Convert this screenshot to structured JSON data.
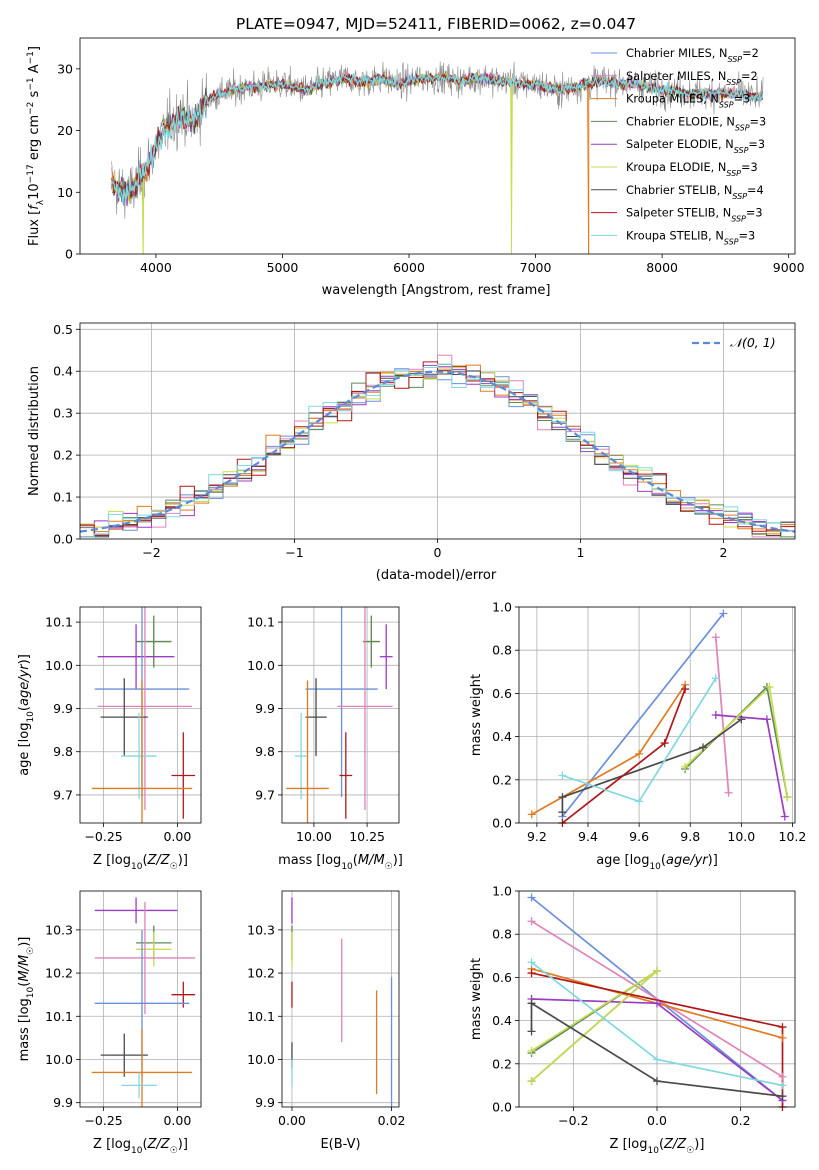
{
  "figure_title": "PLATE=0947, MJD=52411, FIBERID=0062, z=0.047",
  "colors": {
    "Chabrier MILES": "#6a8fdb",
    "Salpeter MILES": "#e083b8",
    "Kroupa MILES": "#e07b20",
    "Chabrier ELODIE": "#5c8a5c",
    "Salpeter ELODIE": "#9b3cc4",
    "Kroupa ELODIE": "#c8dc50",
    "Chabrier STELIB": "#4a4a4a",
    "Salpeter STELIB": "#b01818",
    "Kroupa STELIB": "#80d8e0"
  },
  "chart_data": [
    {
      "type": "line",
      "xlabel": "wavelength [Angstrom, rest frame]",
      "ylabel": "Flux [f_λ 10^-17 erg cm^-2 s^-1 A^-1]",
      "xlim": [
        3400,
        9050
      ],
      "ylim": [
        0,
        35
      ],
      "xticks": [
        4000,
        5000,
        6000,
        7000,
        8000,
        9000
      ],
      "yticks": [
        0,
        10,
        20,
        30
      ],
      "legend_position": "top-right",
      "legend": [
        {
          "key": "Chabrier MILES",
          "label": "Chabrier MILES, N",
          "sub": "SSP",
          "tail": "=2"
        },
        {
          "key": "Salpeter MILES",
          "label": "Salpeter MILES, N",
          "sub": "SSP",
          "tail": "=2"
        },
        {
          "key": "Kroupa MILES",
          "label": "Kroupa MILES, N",
          "sub": "SSP",
          "tail": "=3"
        },
        {
          "key": "Chabrier ELODIE",
          "label": "Chabrier ELODIE, N",
          "sub": "SSP",
          "tail": "=3"
        },
        {
          "key": "Salpeter ELODIE",
          "label": "Salpeter ELODIE, N",
          "sub": "SSP",
          "tail": "=3"
        },
        {
          "key": "Kroupa ELODIE",
          "label": "Kroupa ELODIE, N",
          "sub": "SSP",
          "tail": "=3"
        },
        {
          "key": "Chabrier STELIB",
          "label": "Chabrier STELIB, N",
          "sub": "SSP",
          "tail": "=4"
        },
        {
          "key": "Salpeter STELIB",
          "label": "Salpeter STELIB, N",
          "sub": "SSP",
          "tail": "=3"
        },
        {
          "key": "Kroupa STELIB",
          "label": "Kroupa STELIB, N",
          "sub": "SSP",
          "tail": "=3"
        }
      ],
      "continuum": [
        [
          3650,
          12
        ],
        [
          3700,
          10.5
        ],
        [
          3800,
          10
        ],
        [
          3900,
          13
        ],
        [
          3950,
          15
        ],
        [
          4000,
          17.5
        ],
        [
          4100,
          21
        ],
        [
          4200,
          22.5
        ],
        [
          4300,
          21.5
        ],
        [
          4400,
          25
        ],
        [
          4500,
          26
        ],
        [
          4600,
          26.5
        ],
        [
          4700,
          27
        ],
        [
          4800,
          27
        ],
        [
          4900,
          27.5
        ],
        [
          5000,
          27.5
        ],
        [
          5100,
          27
        ],
        [
          5200,
          26.5
        ],
        [
          5300,
          27.5
        ],
        [
          5400,
          28
        ],
        [
          5500,
          28.5
        ],
        [
          5600,
          28
        ],
        [
          5700,
          28
        ],
        [
          5800,
          28.5
        ],
        [
          5900,
          27.5
        ],
        [
          6000,
          28
        ],
        [
          6100,
          28.5
        ],
        [
          6200,
          28.5
        ],
        [
          6300,
          28.5
        ],
        [
          6400,
          28
        ],
        [
          6500,
          28.5
        ],
        [
          6600,
          28.5
        ],
        [
          6700,
          28
        ],
        [
          6800,
          28
        ],
        [
          6900,
          27.5
        ],
        [
          7000,
          27.5
        ],
        [
          7100,
          27
        ],
        [
          7200,
          26.5
        ],
        [
          7300,
          27
        ],
        [
          7400,
          27.5
        ],
        [
          7500,
          28
        ],
        [
          7600,
          28
        ],
        [
          7700,
          27.5
        ],
        [
          7800,
          27.5
        ],
        [
          7900,
          27
        ],
        [
          8000,
          26.5
        ],
        [
          8100,
          26.5
        ],
        [
          8200,
          26
        ],
        [
          8300,
          26
        ],
        [
          8400,
          26
        ],
        [
          8500,
          26
        ],
        [
          8600,
          26
        ],
        [
          8700,
          25.5
        ],
        [
          8800,
          25.5
        ]
      ],
      "dropouts": [
        {
          "key": "Kroupa ELODIE",
          "x": 3900,
          "y": 0
        },
        {
          "key": "Kroupa ELODIE",
          "x": 6810,
          "y": 0
        },
        {
          "key": "Kroupa MILES",
          "x": 7420,
          "y": 0
        }
      ]
    },
    {
      "type": "histogram",
      "xlabel": "(data-model)/error",
      "ylabel": "Normed distribution",
      "xlim": [
        -2.5,
        2.5
      ],
      "ylim": [
        0,
        0.515
      ],
      "xticks": [
        -2,
        -1,
        0,
        1,
        2
      ],
      "yticks": [
        0.0,
        0.1,
        0.2,
        0.3,
        0.4,
        0.5
      ],
      "grid": true,
      "bin_width": 0.1,
      "reference": {
        "label": "𝒩(0, 1)",
        "mean": 0,
        "sigma": 1,
        "legend_position": "top-right"
      }
    },
    {
      "type": "errorbar",
      "xlabel": "Z [log10(Z/Z☉)]",
      "ylabel": "age  [log10(age/yr)]",
      "xlim": [
        -0.33,
        0.08
      ],
      "ylim": [
        9.635,
        10.135
      ],
      "xticks": [
        -0.25,
        0.0
      ],
      "xticklabels": [
        "−0.25",
        "0.00"
      ],
      "yticks": [
        9.7,
        9.8,
        9.9,
        10.0,
        10.1
      ],
      "grid": true,
      "points": [
        {
          "key": "Kroupa ELODIE",
          "x": -0.08,
          "xerr": 0.06,
          "y": 10.055,
          "yerr": 0.06
        },
        {
          "key": "Chabrier ELODIE",
          "x": -0.08,
          "xerr": 0.06,
          "y": 10.055,
          "yerr": 0.06
        },
        {
          "key": "Salpeter ELODIE",
          "x": -0.14,
          "xerr": 0.13,
          "y": 10.02,
          "yerr": 0.075
        },
        {
          "key": "Chabrier MILES",
          "x": -0.12,
          "xerr": 0.16,
          "y": 9.945,
          "yerr": 0.25
        },
        {
          "key": "Salpeter MILES",
          "x": -0.11,
          "xerr": 0.16,
          "y": 9.905,
          "yerr": 0.24
        },
        {
          "key": "Chabrier STELIB",
          "x": -0.18,
          "xerr": 0.08,
          "y": 9.88,
          "yerr": 0.09
        },
        {
          "key": "Kroupa STELIB",
          "x": -0.13,
          "xerr": 0.06,
          "y": 9.79,
          "yerr": 0.1
        },
        {
          "key": "Salpeter STELIB",
          "x": 0.02,
          "xerr": 0.04,
          "y": 9.745,
          "yerr": 0.1
        },
        {
          "key": "Kroupa MILES",
          "x": -0.12,
          "xerr": 0.17,
          "y": 9.715,
          "yerr": 0.25
        }
      ]
    },
    {
      "type": "errorbar",
      "xlabel": "mass [log10(M/M☉)]",
      "ylabel": "",
      "xlim": [
        9.85,
        10.4
      ],
      "ylim": [
        9.635,
        10.135
      ],
      "xticks": [
        10.0,
        10.25
      ],
      "xticklabels": [
        "10.00",
        "10.25"
      ],
      "yticks": [
        9.7,
        9.8,
        9.9,
        10.0,
        10.1
      ],
      "grid": true,
      "points": [
        {
          "key": "Kroupa ELODIE",
          "x": 10.27,
          "xerr": 0.04,
          "y": 10.055,
          "yerr": 0.06
        },
        {
          "key": "Chabrier ELODIE",
          "x": 10.27,
          "xerr": 0.04,
          "y": 10.055,
          "yerr": 0.06
        },
        {
          "key": "Salpeter ELODIE",
          "x": 10.34,
          "xerr": 0.03,
          "y": 10.02,
          "yerr": 0.075
        },
        {
          "key": "Chabrier MILES",
          "x": 10.13,
          "xerr": 0.17,
          "y": 9.945,
          "yerr": 0.25
        },
        {
          "key": "Salpeter MILES",
          "x": 10.24,
          "xerr": 0.13,
          "y": 9.905,
          "yerr": 0.24
        },
        {
          "key": "Chabrier STELIB",
          "x": 10.01,
          "xerr": 0.05,
          "y": 9.88,
          "yerr": 0.09
        },
        {
          "key": "Kroupa STELIB",
          "x": 9.94,
          "xerr": 0.03,
          "y": 9.79,
          "yerr": 0.1
        },
        {
          "key": "Salpeter STELIB",
          "x": 10.15,
          "xerr": 0.03,
          "y": 9.745,
          "yerr": 0.1
        },
        {
          "key": "Kroupa MILES",
          "x": 9.97,
          "xerr": 0.1,
          "y": 9.715,
          "yerr": 0.25
        }
      ]
    },
    {
      "type": "line",
      "xlabel": "age  [log10(age/yr)]",
      "ylabel": "mass weight",
      "xlim": [
        9.13,
        10.21
      ],
      "ylim": [
        0,
        1
      ],
      "xticks": [
        9.2,
        9.4,
        9.6,
        9.8,
        10.0,
        10.2
      ],
      "yticks": [
        0.0,
        0.2,
        0.4,
        0.6,
        0.8,
        1.0
      ],
      "grid": true,
      "series": [
        {
          "key": "Chabrier MILES",
          "points": [
            [
              9.3,
              0.03
            ],
            [
              9.93,
              0.97
            ]
          ]
        },
        {
          "key": "Salpeter MILES",
          "points": [
            [
              9.9,
              0.86
            ],
            [
              9.95,
              0.14
            ]
          ]
        },
        {
          "key": "Kroupa MILES",
          "points": [
            [
              9.18,
              0.04
            ],
            [
              9.6,
              0.32
            ],
            [
              9.78,
              0.64
            ]
          ]
        },
        {
          "key": "Chabrier ELODIE",
          "points": [
            [
              9.78,
              0.25
            ],
            [
              10.1,
              0.63
            ],
            [
              10.18,
              0.12
            ]
          ]
        },
        {
          "key": "Salpeter ELODIE",
          "points": [
            [
              9.9,
              0.5
            ],
            [
              10.1,
              0.48
            ],
            [
              10.17,
              0.03
            ]
          ]
        },
        {
          "key": "Kroupa ELODIE",
          "points": [
            [
              9.78,
              0.26
            ],
            [
              10.11,
              0.63
            ],
            [
              10.18,
              0.12
            ]
          ]
        },
        {
          "key": "Chabrier STELIB",
          "points": [
            [
              9.3,
              0.05
            ],
            [
              9.3,
              0.12
            ],
            [
              9.85,
              0.35
            ],
            [
              10.0,
              0.48
            ]
          ]
        },
        {
          "key": "Salpeter STELIB",
          "points": [
            [
              9.3,
              0.0
            ],
            [
              9.7,
              0.37
            ],
            [
              9.78,
              0.62
            ]
          ]
        },
        {
          "key": "Kroupa STELIB",
          "points": [
            [
              9.3,
              0.22
            ],
            [
              9.6,
              0.1
            ],
            [
              9.9,
              0.67
            ]
          ]
        }
      ]
    },
    {
      "type": "errorbar",
      "xlabel": "Z [log10(Z/Z☉)]",
      "ylabel": "mass [log10(M/M☉)]",
      "xlim": [
        -0.33,
        0.08
      ],
      "ylim": [
        9.89,
        10.39
      ],
      "xticks": [
        -0.25,
        0.0
      ],
      "xticklabels": [
        "−0.25",
        "0.00"
      ],
      "yticks": [
        9.9,
        10.0,
        10.1,
        10.2,
        10.3
      ],
      "grid": true,
      "points": [
        {
          "key": "Salpeter ELODIE",
          "x": -0.14,
          "xerr": 0.14,
          "y": 10.345,
          "yerr": 0.03
        },
        {
          "key": "Chabrier ELODIE",
          "x": -0.08,
          "xerr": 0.06,
          "y": 10.27,
          "yerr": 0.04
        },
        {
          "key": "Kroupa ELODIE",
          "x": -0.08,
          "xerr": 0.06,
          "y": 10.255,
          "yerr": 0.04
        },
        {
          "key": "Salpeter MILES",
          "x": -0.11,
          "xerr": 0.17,
          "y": 10.235,
          "yerr": 0.13
        },
        {
          "key": "Salpeter STELIB",
          "x": 0.02,
          "xerr": 0.04,
          "y": 10.15,
          "yerr": 0.03
        },
        {
          "key": "Chabrier MILES",
          "x": -0.12,
          "xerr": 0.16,
          "y": 10.13,
          "yerr": 0.17
        },
        {
          "key": "Chabrier STELIB",
          "x": -0.18,
          "xerr": 0.08,
          "y": 10.01,
          "yerr": 0.05
        },
        {
          "key": "Kroupa MILES",
          "x": -0.12,
          "xerr": 0.17,
          "y": 9.97,
          "yerr": 0.1
        },
        {
          "key": "Kroupa STELIB",
          "x": -0.13,
          "xerr": 0.06,
          "y": 9.94,
          "yerr": 0.03
        }
      ]
    },
    {
      "type": "errorbar",
      "xlabel": "E(B-V)",
      "ylabel": "",
      "xlim": [
        -0.002,
        0.0215
      ],
      "ylim": [
        9.89,
        10.39
      ],
      "xticks": [
        0.0,
        0.02
      ],
      "xticklabels": [
        "0.00",
        "0.02"
      ],
      "yticks": [
        9.9,
        10.0,
        10.1,
        10.2,
        10.3
      ],
      "grid": true,
      "points": [
        {
          "key": "Salpeter ELODIE",
          "x": 0.0,
          "xerr": 0,
          "y": 10.345,
          "yerr": 0.03
        },
        {
          "key": "Chabrier ELODIE",
          "x": 0.0,
          "xerr": 0,
          "y": 10.27,
          "yerr": 0.04
        },
        {
          "key": "Kroupa ELODIE",
          "x": 0.0,
          "xerr": 0,
          "y": 10.255,
          "yerr": 0.04
        },
        {
          "key": "Salpeter MILES",
          "x": 0.01,
          "xerr": 0,
          "y": 10.16,
          "yerr": 0.12
        },
        {
          "key": "Salpeter STELIB",
          "x": 0.0,
          "xerr": 0,
          "y": 10.15,
          "yerr": 0.03
        },
        {
          "key": "Chabrier MILES",
          "x": 0.02,
          "xerr": 0,
          "y": 10.02,
          "yerr": 0.17
        },
        {
          "key": "Kroupa MILES",
          "x": 0.017,
          "xerr": 0,
          "y": 10.04,
          "yerr": 0.12
        },
        {
          "key": "Chabrier STELIB",
          "x": 0.0,
          "xerr": 0,
          "y": 10.01,
          "yerr": 0.03
        },
        {
          "key": "Kroupa STELIB",
          "x": 0.0,
          "xerr": 0,
          "y": 9.97,
          "yerr": 0.03
        }
      ]
    },
    {
      "type": "line",
      "xlabel": "Z [log10(Z/Z☉)]",
      "ylabel": "mass weight",
      "xlim": [
        -0.33,
        0.33
      ],
      "ylim": [
        0,
        1
      ],
      "xticks": [
        -0.2,
        0.0,
        0.2
      ],
      "xticklabels": [
        "−0.2",
        "0.0",
        "0.2"
      ],
      "yticks": [
        0.0,
        0.2,
        0.4,
        0.6,
        0.8,
        1.0
      ],
      "grid": true,
      "series": [
        {
          "key": "Chabrier MILES",
          "points": [
            [
              -0.3,
              0.97
            ],
            [
              0.3,
              0.03
            ]
          ]
        },
        {
          "key": "Salpeter MILES",
          "points": [
            [
              -0.3,
              0.86
            ],
            [
              0.3,
              0.14
            ]
          ]
        },
        {
          "key": "Kroupa MILES",
          "points": [
            [
              -0.3,
              0.64
            ],
            [
              0.3,
              0.32
            ]
          ]
        },
        {
          "key": "Chabrier ELODIE",
          "points": [
            [
              -0.3,
              0.25
            ],
            [
              0.0,
              0.63
            ],
            [
              -0.3,
              0.12
            ]
          ]
        },
        {
          "key": "Salpeter ELODIE",
          "points": [
            [
              -0.3,
              0.5
            ],
            [
              0.0,
              0.48
            ],
            [
              0.3,
              0.03
            ]
          ]
        },
        {
          "key": "Kroupa ELODIE",
          "points": [
            [
              -0.3,
              0.12
            ],
            [
              0.0,
              0.63
            ],
            [
              -0.3,
              0.26
            ]
          ]
        },
        {
          "key": "Chabrier STELIB",
          "points": [
            [
              -0.3,
              0.35
            ],
            [
              -0.3,
              0.48
            ],
            [
              0.0,
              0.12
            ],
            [
              0.3,
              0.05
            ]
          ]
        },
        {
          "key": "Salpeter STELIB",
          "points": [
            [
              -0.3,
              0.62
            ],
            [
              0.3,
              0.37
            ],
            [
              0.3,
              0.0
            ]
          ]
        },
        {
          "key": "Kroupa STELIB",
          "points": [
            [
              -0.3,
              0.67
            ],
            [
              0.0,
              0.22
            ],
            [
              0.3,
              0.1
            ]
          ]
        }
      ]
    }
  ]
}
